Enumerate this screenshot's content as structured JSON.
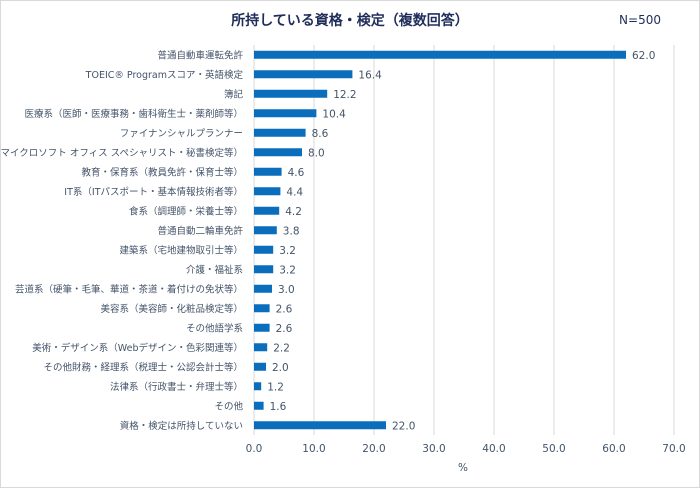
{
  "chart_data": {
    "type": "bar",
    "orientation": "horizontal",
    "title": "所持している資格・検定（複数回答）",
    "annotation": "N=500",
    "xlabel": "%",
    "ylabel": "",
    "xlim": [
      0,
      70
    ],
    "xticks": [
      "0.0",
      "10.0",
      "20.0",
      "30.0",
      "40.0",
      "50.0",
      "60.0",
      "70.0"
    ],
    "grid": true,
    "bar_color": "#0a6ebd",
    "categories": [
      "普通自動車運転免許",
      "TOEIC® Programスコア・英語検定",
      "簿記",
      "医療系（医師・医療事務・歯科衛生士・薬剤師等）",
      "ファイナンシャルプランナー",
      "ビジネス系（マイクロソフト オフィス スペシャリスト・秘書検定等）",
      "教育・保育系（教員免許・保育士等）",
      "IT系（ITパスポート・基本情報技術者等）",
      "食系（調理師・栄養士等）",
      "普通自動二輪車免許",
      "建築系（宅地建物取引士等）",
      "介護・福祉系",
      "芸道系（硬筆・毛筆、華道・茶道・着付けの免状等）",
      "美容系（美容師・化粧品検定等）",
      "その他語学系",
      "美術・デザイン系（Webデザイン・色彩関連等）",
      "その他財務・経理系（税理士・公認会計士等）",
      "法律系（行政書士・弁理士等）",
      "その他",
      "資格・検定は所持していない"
    ],
    "values": [
      62.0,
      16.4,
      12.2,
      10.4,
      8.6,
      8.0,
      4.6,
      4.4,
      4.2,
      3.8,
      3.2,
      3.2,
      3.0,
      2.6,
      2.6,
      2.2,
      2.0,
      1.2,
      1.6,
      22.0
    ],
    "value_labels": [
      "62.0",
      "16.4",
      "12.2",
      "10.4",
      "8.6",
      "8.0",
      "4.6",
      "4.4",
      "4.2",
      "3.8",
      "3.2",
      "3.2",
      "3.0",
      "2.6",
      "2.6",
      "2.2",
      "2.0",
      "1.2",
      "1.6",
      "22.0"
    ]
  }
}
